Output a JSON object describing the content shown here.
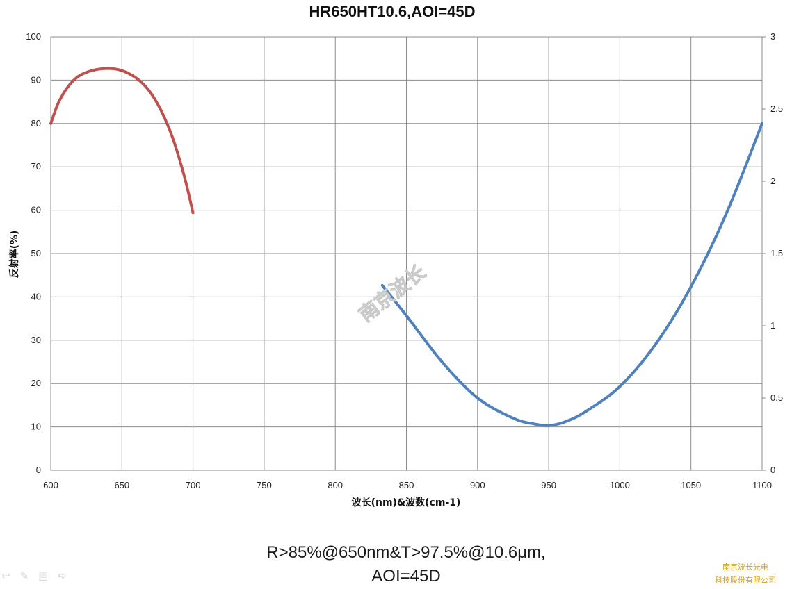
{
  "chart_data": {
    "type": "line",
    "title": "HR650HT10.6,AOI=45D",
    "xlabel": "波长(nm)&波数(cm-1)",
    "ylabel": "反射率(%)",
    "y2label": "",
    "xlim": [
      600,
      1100
    ],
    "ylim": [
      0,
      100
    ],
    "y2lim": [
      0,
      3
    ],
    "x_ticks": [
      "600",
      "650",
      "700",
      "750",
      "800",
      "850",
      "900",
      "950",
      "1000",
      "1050",
      "1100"
    ],
    "y_ticks": [
      "0",
      "10",
      "20",
      "30",
      "40",
      "50",
      "60",
      "70",
      "80",
      "90",
      "100"
    ],
    "y2_ticks": [
      "0",
      "0.5",
      "1",
      "1.5",
      "2",
      "2.5",
      "3"
    ],
    "grid": true,
    "legend": "none",
    "series": [
      {
        "axis": "left",
        "color": "#c0504d",
        "x": [
          600,
          605,
          610,
          615,
          620,
          625,
          630,
          635,
          640,
          645,
          650,
          655,
          660,
          665,
          670,
          675,
          680,
          685,
          690,
          695,
          700
        ],
        "y": [
          80.0,
          84.5,
          87.5,
          89.6,
          91.0,
          91.8,
          92.3,
          92.6,
          92.7,
          92.6,
          92.2,
          91.5,
          90.5,
          89.1,
          87.2,
          84.6,
          81.3,
          77.3,
          72.3,
          66.4,
          59.4
        ]
      },
      {
        "axis": "right",
        "color": "#4f81bd",
        "x": [
          833,
          850,
          875,
          900,
          925,
          940,
          950,
          960,
          975,
          1000,
          1025,
          1050,
          1075,
          1100
        ],
        "y": [
          1.28,
          1.07,
          0.75,
          0.5,
          0.36,
          0.32,
          0.31,
          0.33,
          0.4,
          0.58,
          0.87,
          1.27,
          1.78,
          2.4
        ]
      }
    ]
  },
  "watermark": "南京波长",
  "caption_line1": "R>85%@650nm&T>97.5%@10.6μm,",
  "caption_line2": "AOI=45D",
  "company_line1": "南京波长光电",
  "company_line2": "科技股份有限公司",
  "slide_tools": [
    "↩",
    "✎",
    "▤",
    "➪"
  ]
}
